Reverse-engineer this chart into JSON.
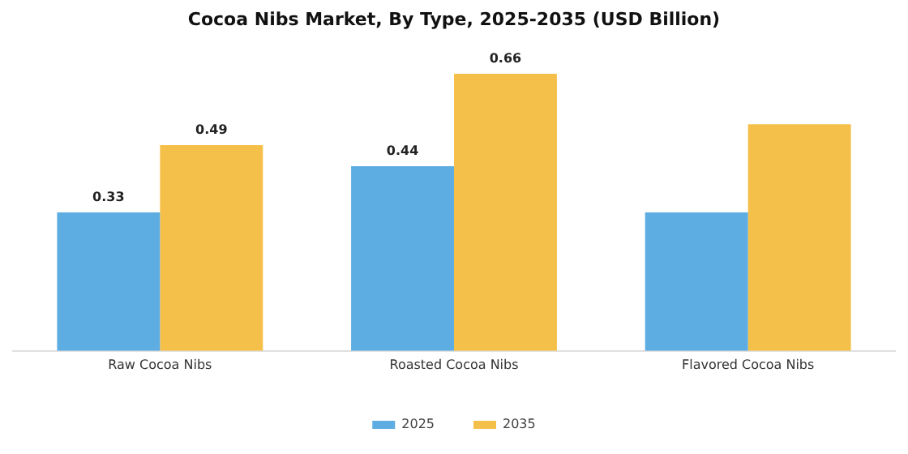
{
  "chart_data": {
    "type": "bar",
    "title": "Cocoa Nibs Market, By Type, 2025-2035 (USD Billion)",
    "categories": [
      "Raw Cocoa Nibs",
      "Roasted Cocoa Nibs",
      "Flavored Cocoa Nibs"
    ],
    "series": [
      {
        "name": "2025",
        "color": "#5dade2",
        "values": [
          0.33,
          0.44,
          0.33
        ],
        "value_labels": [
          "0.33",
          "0.44",
          null
        ]
      },
      {
        "name": "2035",
        "color": "#f5c04a",
        "values": [
          0.49,
          0.66,
          0.54
        ],
        "value_labels": [
          "0.49",
          "0.66",
          null
        ]
      }
    ],
    "tick_labels": "x",
    "grid": false,
    "legend": "bottom"
  }
}
